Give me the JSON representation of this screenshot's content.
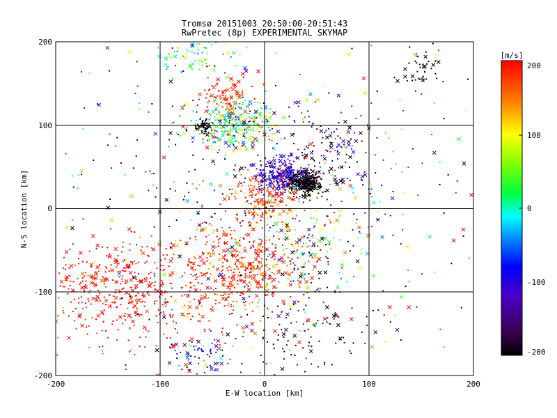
{
  "chart_data": {
    "type": "scatter",
    "title": "Tromsø 20151003 20:50:00-20:51:43",
    "subtitle": "RwPretec (8p) EXPERIMENTAL SKYMAP",
    "xlabel": "E-W location [km]",
    "ylabel": "N-S location [km]",
    "xlim": [
      -200,
      200
    ],
    "ylim": [
      -200,
      200
    ],
    "xticks": [
      "-200",
      "-100",
      "0",
      "100",
      "200"
    ],
    "yticks": [
      "-200",
      "-100",
      "0",
      "100",
      "200"
    ],
    "grid": true,
    "markers": [
      "x",
      "dot"
    ],
    "colorbar": {
      "label": "[m/s]",
      "range": [
        -200,
        200
      ],
      "ticks": [
        "200",
        "100",
        "0",
        "-100",
        "-200"
      ],
      "colormap": "black-purple-blue-cyan-green-yellow-red"
    },
    "clusters": [
      {
        "x": -25,
        "y": -70,
        "sx": 30,
        "sy": 30,
        "n": 420,
        "v": 185,
        "dv": 40
      },
      {
        "x": -140,
        "y": -90,
        "sx": 40,
        "sy": 25,
        "n": 380,
        "v": 195,
        "dv": 15
      },
      {
        "x": -100,
        "y": -140,
        "sx": 40,
        "sy": 30,
        "n": 90,
        "v": 195,
        "dv": 15
      },
      {
        "x": 15,
        "y": 40,
        "sx": 12,
        "sy": 10,
        "n": 280,
        "v": -110,
        "dv": 25
      },
      {
        "x": 40,
        "y": 30,
        "sx": 7,
        "sy": 6,
        "n": 260,
        "v": -200,
        "dv": 5
      },
      {
        "x": -30,
        "y": 100,
        "sx": 20,
        "sy": 14,
        "n": 320,
        "v": 30,
        "dv": 70
      },
      {
        "x": -38,
        "y": 135,
        "sx": 12,
        "sy": 12,
        "n": 80,
        "v": 190,
        "dv": 15
      },
      {
        "x": -58,
        "y": 98,
        "sx": 4,
        "sy": 4,
        "n": 40,
        "v": -200,
        "dv": 5
      },
      {
        "x": 0,
        "y": 15,
        "sx": 16,
        "sy": 12,
        "n": 160,
        "v": 175,
        "dv": 35
      },
      {
        "x": 35,
        "y": -40,
        "sx": 35,
        "sy": 30,
        "n": 170,
        "v": 10,
        "dv": 110
      },
      {
        "x": 55,
        "y": 65,
        "sx": 30,
        "sy": 25,
        "n": 130,
        "v": -170,
        "dv": 50
      },
      {
        "x": 40,
        "y": -150,
        "sx": 30,
        "sy": 30,
        "n": 100,
        "v": -190,
        "dv": 20
      },
      {
        "x": -60,
        "y": -175,
        "sx": 12,
        "sy": 12,
        "n": 70,
        "v": -100,
        "dv": 60
      },
      {
        "x": -65,
        "y": 185,
        "sx": 20,
        "sy": 12,
        "n": 70,
        "v": 30,
        "dv": 50
      },
      {
        "x": 150,
        "y": 170,
        "sx": 10,
        "sy": 10,
        "n": 40,
        "v": -200,
        "dv": 5
      },
      {
        "x": 0,
        "y": 0,
        "sx": 110,
        "sy": 110,
        "n": 650,
        "v": -30,
        "dv": 230
      }
    ]
  }
}
